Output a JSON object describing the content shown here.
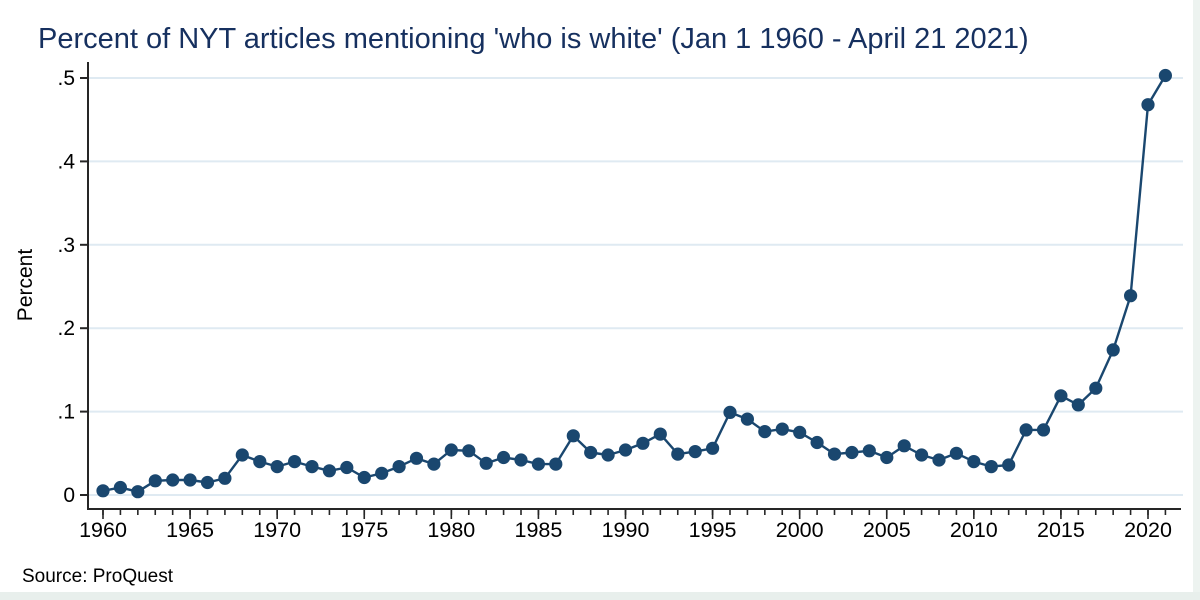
{
  "figure": {
    "title": "Percent of NYT articles mentioning 'who is white' (Jan 1 1960 - April 21 2021)",
    "ylabel": "Percent",
    "source_note": "Source: ProQuest"
  },
  "colors": {
    "line": "#1a476f",
    "marker": "#1a476f",
    "title_text": "#16305f",
    "grid": "#dfeaf2",
    "axis": "#262626",
    "text": "#000000",
    "background": "#ffffff",
    "edge_tint": "#e9efec"
  },
  "chart_data": {
    "type": "line",
    "title": "Percent of NYT articles mentioning 'who is white' (Jan 1 1960 - April 21 2021)",
    "xlabel": "",
    "ylabel": "Percent",
    "annotation": "Source: ProQuest",
    "grid": true,
    "legend": false,
    "marker": "circle",
    "ylim": [
      0,
      0.5
    ],
    "yticks": [
      0,
      0.1,
      0.2,
      0.3,
      0.4,
      0.5
    ],
    "ytick_labels": [
      "0",
      ".1",
      ".2",
      ".3",
      ".4",
      ".5"
    ],
    "xticks": [
      1960,
      1965,
      1970,
      1975,
      1980,
      1985,
      1990,
      1995,
      2000,
      2005,
      2010,
      2015,
      2020
    ],
    "x": [
      1960,
      1961,
      1962,
      1963,
      1964,
      1965,
      1966,
      1967,
      1968,
      1969,
      1970,
      1971,
      1972,
      1973,
      1974,
      1975,
      1976,
      1977,
      1978,
      1979,
      1980,
      1981,
      1982,
      1983,
      1984,
      1985,
      1986,
      1987,
      1988,
      1989,
      1990,
      1991,
      1992,
      1993,
      1994,
      1995,
      1996,
      1997,
      1998,
      1999,
      2000,
      2001,
      2002,
      2003,
      2004,
      2005,
      2006,
      2007,
      2008,
      2009,
      2010,
      2011,
      2012,
      2013,
      2014,
      2015,
      2016,
      2017,
      2018,
      2019,
      2020,
      2021
    ],
    "series": [
      {
        "name": "Percent of NYT articles mentioning 'who is white'",
        "values": [
          0.005,
          0.009,
          0.004,
          0.017,
          0.018,
          0.018,
          0.015,
          0.02,
          0.048,
          0.04,
          0.034,
          0.04,
          0.034,
          0.029,
          0.033,
          0.021,
          0.026,
          0.034,
          0.044,
          0.037,
          0.054,
          0.053,
          0.038,
          0.045,
          0.042,
          0.037,
          0.037,
          0.071,
          0.051,
          0.048,
          0.054,
          0.062,
          0.073,
          0.049,
          0.052,
          0.056,
          0.099,
          0.091,
          0.076,
          0.079,
          0.075,
          0.063,
          0.049,
          0.051,
          0.053,
          0.045,
          0.059,
          0.048,
          0.042,
          0.05,
          0.04,
          0.034,
          0.036,
          0.078,
          0.078,
          0.119,
          0.108,
          0.128,
          0.174,
          0.239,
          0.468,
          0.503
        ]
      }
    ]
  }
}
